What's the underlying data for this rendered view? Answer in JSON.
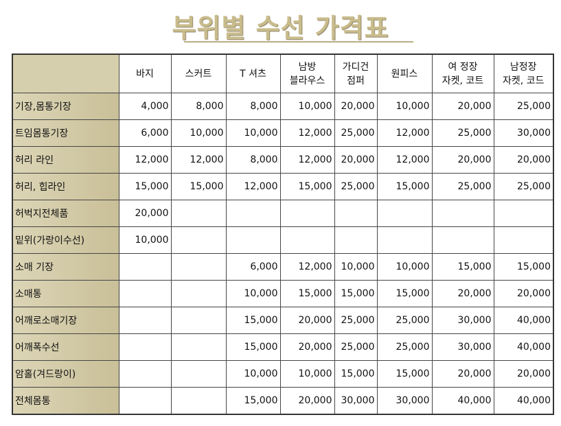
{
  "title": "부위별 수선 가격표",
  "table": {
    "columns": [
      [
        "바지"
      ],
      [
        "스커트"
      ],
      [
        "T 셔츠"
      ],
      [
        "남방",
        "블라우스"
      ],
      [
        "가디건",
        "점퍼"
      ],
      [
        "원피스"
      ],
      [
        "여 정장",
        "자켓, 코트"
      ],
      [
        "남정장",
        "자켓, 코드"
      ]
    ],
    "rows": [
      {
        "label": "기장,몸통기장",
        "cells": [
          "4,000",
          "8,000",
          "8,000",
          "10,000",
          "20,000",
          "10,000",
          "20,000",
          "25,000"
        ]
      },
      {
        "label": "트임몸통기장",
        "cells": [
          "6,000",
          "10,000",
          "10,000",
          "12,000",
          "25,000",
          "12,000",
          "25,000",
          "30,000"
        ]
      },
      {
        "label": "허리 라인",
        "cells": [
          "12,000",
          "12,000",
          "8,000",
          "12,000",
          "20,000",
          "12,000",
          "20,000",
          "20,000"
        ]
      },
      {
        "label": "허리, 힙라인",
        "cells": [
          "15,000",
          "15,000",
          "12,000",
          "15,000",
          "25,000",
          "15,000",
          "25,000",
          "25,000"
        ]
      },
      {
        "label": "허벅지전체품",
        "cells": [
          "20,000",
          null,
          null,
          null,
          null,
          null,
          null,
          null
        ]
      },
      {
        "label": "밑위(가랑이수선)",
        "cells": [
          "10,000",
          null,
          null,
          null,
          null,
          null,
          null,
          null
        ]
      },
      {
        "label": "소매 기장",
        "cells": [
          null,
          null,
          "6,000",
          "12,000",
          "10,000",
          "10,000",
          "15,000",
          "15,000"
        ]
      },
      {
        "label": "소매통",
        "cells": [
          null,
          null,
          "10,000",
          "15,000",
          "15,000",
          "15,000",
          "20,000",
          "20,000"
        ]
      },
      {
        "label": "어깨로소매기장",
        "cells": [
          null,
          null,
          "15,000",
          "20,000",
          "25,000",
          "25,000",
          "30,000",
          "40,000"
        ]
      },
      {
        "label": "어깨폭수선",
        "cells": [
          null,
          null,
          "15,000",
          "20,000",
          "25,000",
          "25,000",
          "30,000",
          "40,000"
        ]
      },
      {
        "label": "암홀(겨드랑이)",
        "cells": [
          null,
          null,
          "10,000",
          "10,000",
          "15,000",
          "15,000",
          "20,000",
          "20,000"
        ]
      },
      {
        "label": "전체몸통",
        "cells": [
          null,
          null,
          "15,000",
          "20,000",
          "30,000",
          "30,000",
          "40,000",
          "40,000"
        ]
      }
    ]
  }
}
